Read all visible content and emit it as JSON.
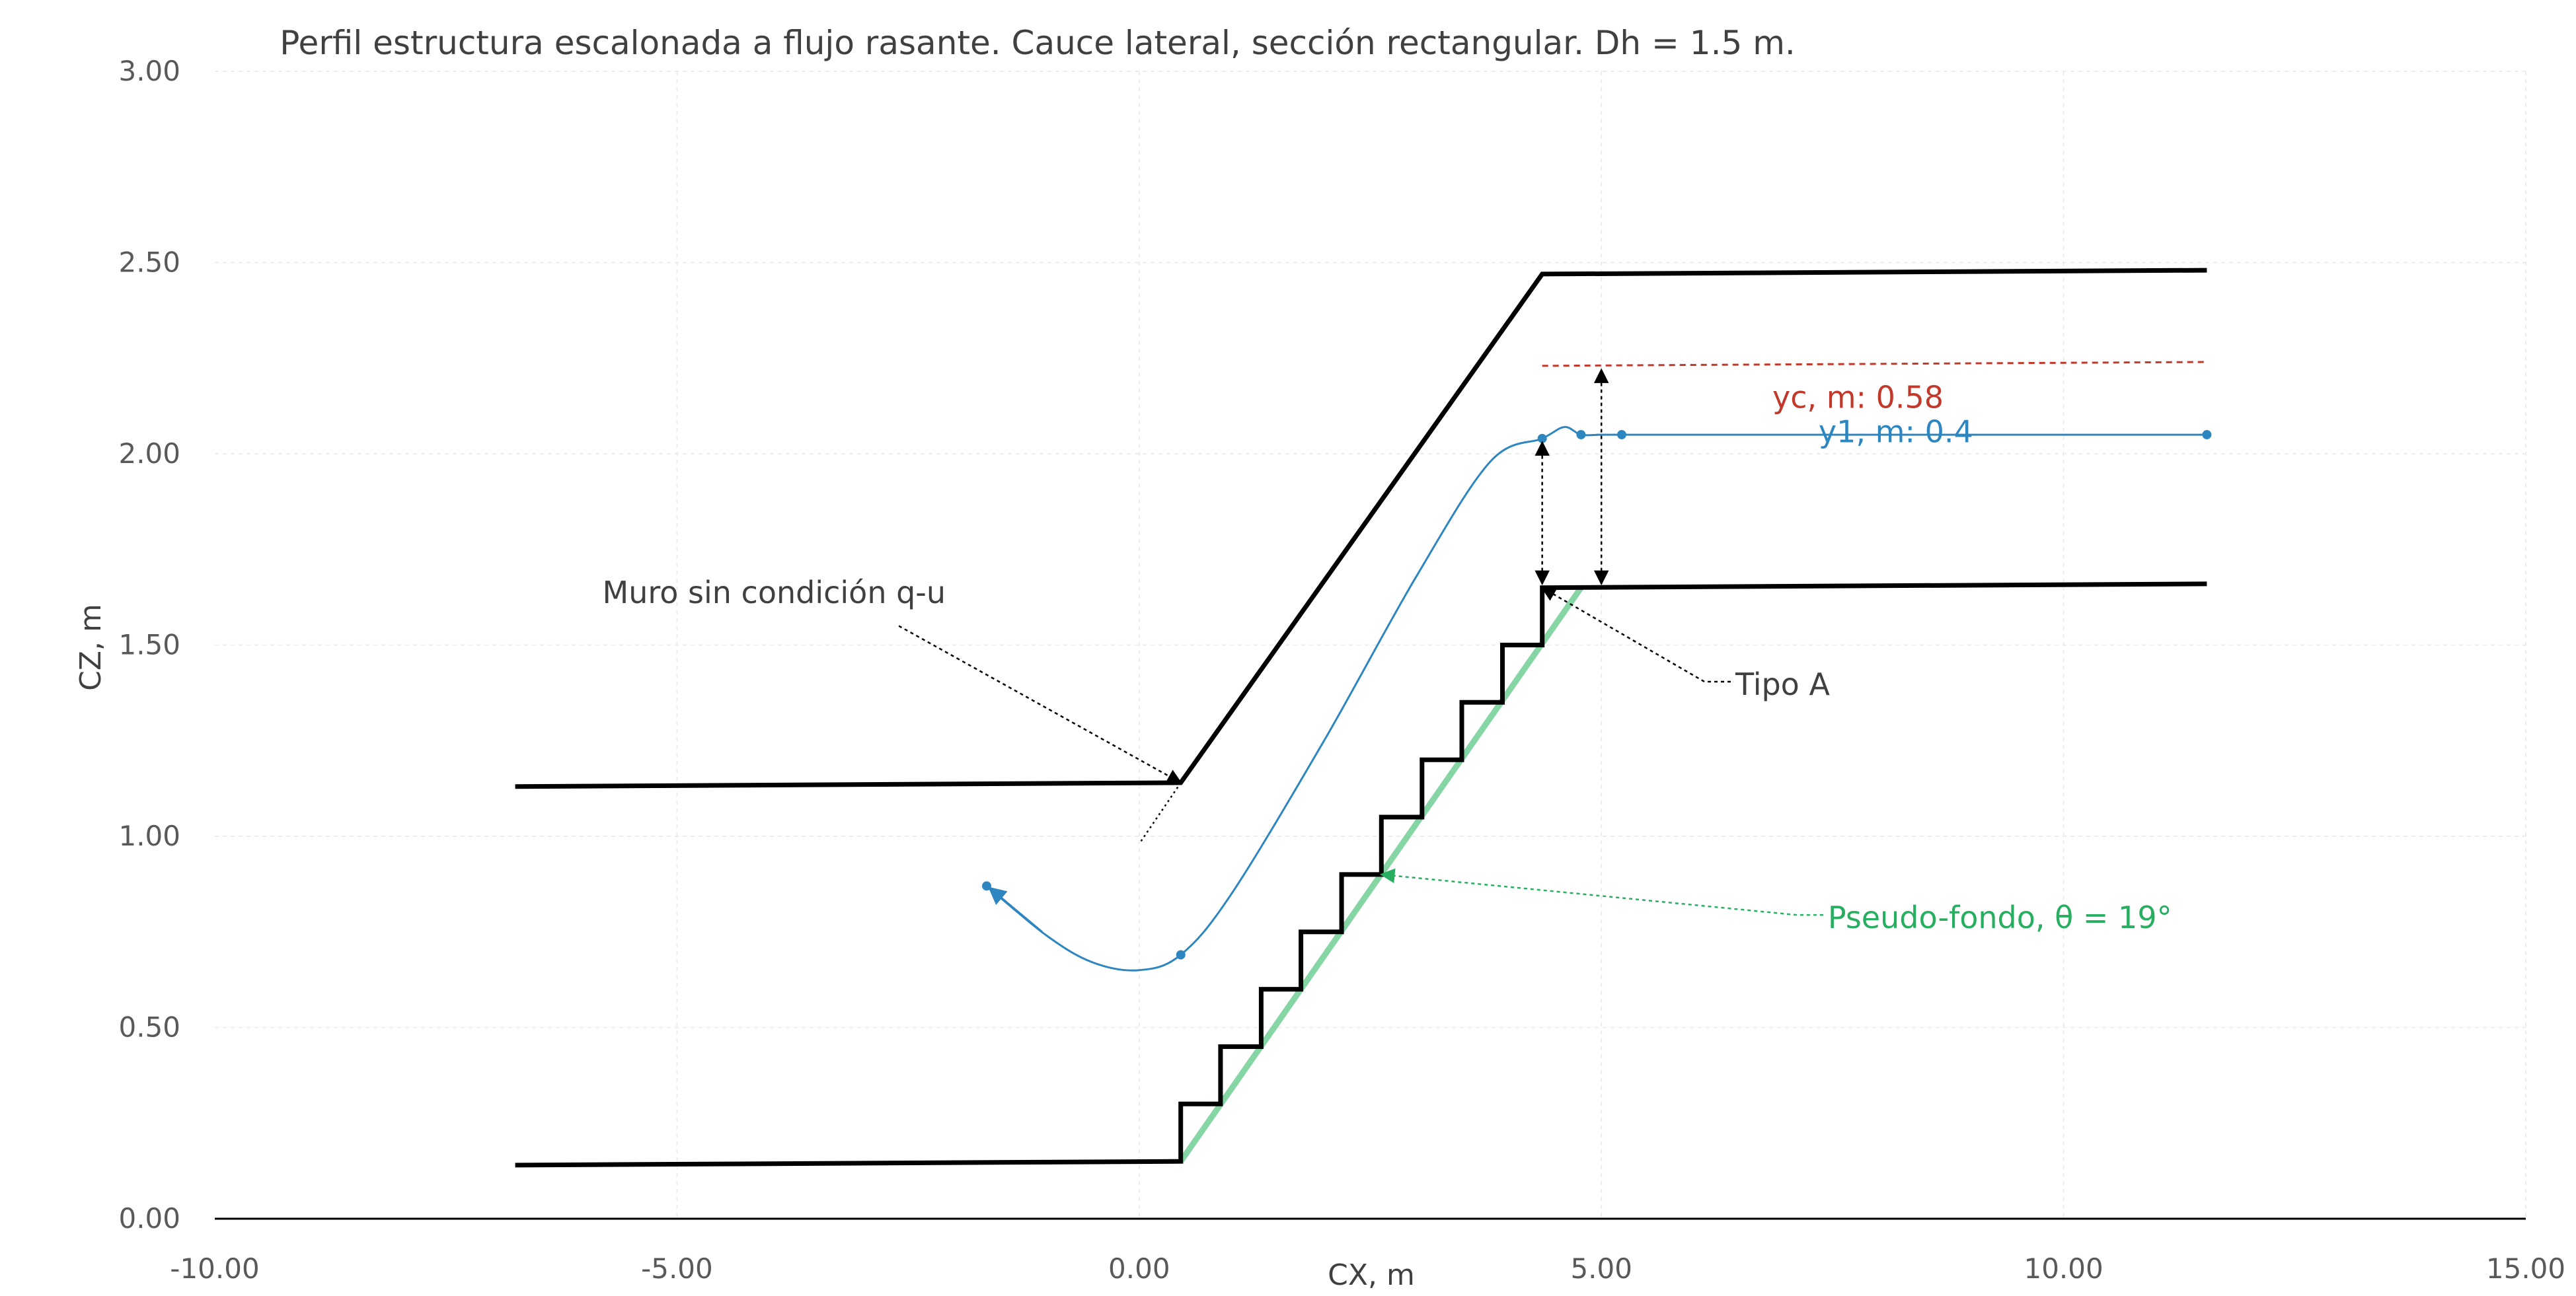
{
  "chart_data": {
    "type": "line",
    "title": "Perfil estructura escalonada a flujo rasante. Cauce lateral, sección rectangular. Dh = 1.5 m.",
    "xlabel": "CX, m",
    "ylabel": "CZ, m",
    "xlim": [
      -10,
      15
    ],
    "ylim": [
      0,
      3
    ],
    "x_ticks": [
      "-10.00",
      "-5.00",
      "0.00",
      "5.00",
      "10.00",
      "15.00"
    ],
    "x_tick_values": [
      -10,
      -5,
      0,
      5,
      10,
      15
    ],
    "y_ticks": [
      "0.00",
      "0.50",
      "1.00",
      "1.50",
      "2.00",
      "2.50",
      "3.00"
    ],
    "y_tick_values": [
      0,
      0.5,
      1,
      1.5,
      2,
      2.5,
      3
    ],
    "grid": true,
    "legend": "none",
    "series": [
      {
        "key": "steps",
        "color": "#000000",
        "x": [
          -6.75,
          0.45,
          0.45,
          0.88,
          0.88,
          1.32,
          1.32,
          1.75,
          1.75,
          2.19,
          2.19,
          2.62,
          2.62,
          3.06,
          3.06,
          3.49,
          3.49,
          3.93,
          3.93,
          4.36,
          4.36,
          11.55
        ],
        "y": [
          0.14,
          0.15,
          0.3,
          0.3,
          0.45,
          0.45,
          0.6,
          0.6,
          0.75,
          0.75,
          0.9,
          0.9,
          1.05,
          1.05,
          1.2,
          1.2,
          1.35,
          1.35,
          1.5,
          1.5,
          1.65,
          1.66
        ]
      },
      {
        "key": "wall",
        "color": "#000000",
        "x": [
          -6.75,
          0.45,
          4.36,
          11.55
        ],
        "y": [
          1.13,
          1.14,
          2.47,
          2.48
        ]
      },
      {
        "key": "pseudo_bottom",
        "color": "#7fd4a0",
        "x": [
          0.45,
          4.78
        ],
        "y": [
          0.15,
          1.65
        ]
      },
      {
        "key": "critical_depth",
        "color": "#c0392b",
        "x": [
          4.36,
          11.55
        ],
        "y": [
          2.23,
          2.24
        ]
      },
      {
        "key": "water_profile",
        "color": "#2e86c1",
        "x": [
          -1.65,
          -1.0,
          -0.5,
          0.0,
          0.45,
          1.0,
          2.0,
          3.0,
          3.8,
          4.36,
          4.6,
          4.78,
          5.0,
          5.22,
          8.0,
          11.55
        ],
        "y": [
          0.87,
          0.74,
          0.67,
          0.65,
          0.69,
          0.85,
          1.25,
          1.68,
          1.98,
          2.04,
          2.07,
          2.05,
          2.05,
          2.05,
          2.05,
          2.05
        ],
        "markers_x": [
          -1.65,
          0.45,
          4.36,
          4.78,
          5.22,
          11.55
        ],
        "markers_y": [
          0.87,
          0.69,
          2.04,
          2.05,
          2.05,
          2.05
        ]
      }
    ],
    "annotations": [
      {
        "text": "Muro sin condición q-u",
        "x": -3.95,
        "y": 1.61,
        "color": "#404040",
        "target_x": 0.45,
        "target_y": 1.14
      },
      {
        "text": "Tipo A",
        "x": 6.45,
        "y": 1.37,
        "color": "#404040",
        "target_x": 4.36,
        "target_y": 1.65
      },
      {
        "text": "Pseudo-fondo, θ = 19°",
        "x": 7.45,
        "y": 0.76,
        "color": "#27ae60",
        "target_x": 2.62,
        "target_y": 0.9
      },
      {
        "text": "yc, m: 0.58",
        "x": 6.85,
        "y": 2.12,
        "color": "#c0392b"
      },
      {
        "text": "y1, m: 0.4",
        "x": 7.35,
        "y": 2.03,
        "color": "#2e86c1"
      }
    ]
  }
}
